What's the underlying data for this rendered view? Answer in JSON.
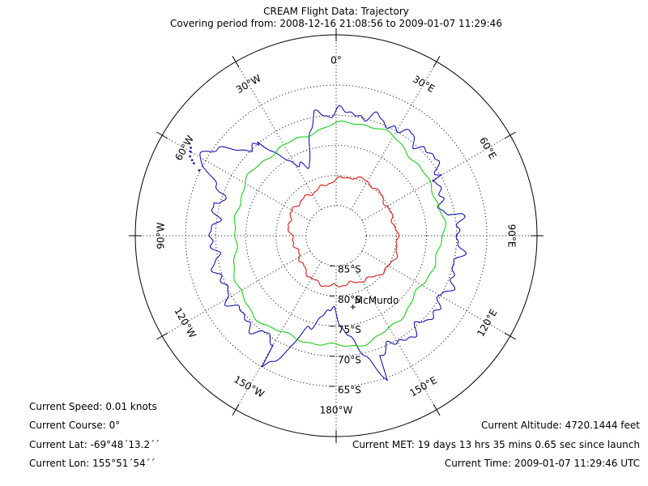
{
  "title": "CREAM Flight Data: Trajectory",
  "subtitle": "Covering period from: 2008-12-16 21:08:56 to 2009-01-07 11:29:46",
  "map": {
    "projection": "south-polar",
    "longitude_labels": [
      {
        "lon": 0,
        "text": "0°"
      },
      {
        "lon": 30,
        "text": "30°E"
      },
      {
        "lon": 60,
        "text": "60°E"
      },
      {
        "lon": 90,
        "text": "90°E"
      },
      {
        "lon": 120,
        "text": "120°E"
      },
      {
        "lon": 150,
        "text": "150°E"
      },
      {
        "lon": 180,
        "text": "180°W"
      },
      {
        "lon": -150,
        "text": "150°W"
      },
      {
        "lon": -120,
        "text": "120°W"
      },
      {
        "lon": -90,
        "text": "90°W"
      },
      {
        "lon": -60,
        "text": "60°W"
      },
      {
        "lon": -30,
        "text": "30°W"
      }
    ],
    "latitude_labels": [
      {
        "lat": -85,
        "text": "85°S"
      },
      {
        "lat": -80,
        "text": "80°S"
      },
      {
        "lat": -75,
        "text": "75°S"
      },
      {
        "lat": -70,
        "text": "70°S"
      },
      {
        "lat": -65,
        "text": "65°S"
      }
    ],
    "place_label": "McMurdo",
    "colors": {
      "coastline": "#0000aa",
      "trajectory_outer": "#00cc00",
      "trajectory_inner": "#dd0000",
      "grid": "#000000"
    }
  },
  "status": {
    "speed": "Current Speed: 0.01 knots",
    "course": "Current Course: 0°",
    "lat": "Current Lat: -69°48´13.2´´",
    "lon": "Current Lon: 155°51´54´´",
    "altitude": "Current Altitude: 4720.1444 feet",
    "met": "Current MET: 19 days 13 hrs 35 mins 0.65 sec since launch",
    "time": "Current Time: 2009-01-07 11:29:46 UTC"
  }
}
